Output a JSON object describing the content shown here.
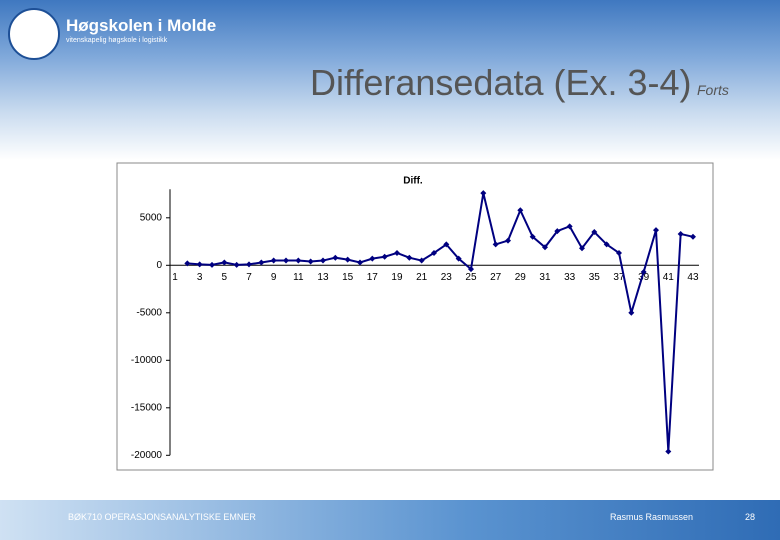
{
  "header": {
    "logo_name": "Høgskolen i Molde",
    "logo_tagline": "vitenskapelig høgskole i logistikk"
  },
  "slide": {
    "title": "Differansedata (Ex. 3-4)",
    "title_suffix": "Forts"
  },
  "footer": {
    "course": "BØK710 OPERASJONSANALYTISKE EMNER",
    "author": "Rasmus Rasmussen",
    "page": "28"
  },
  "chart_data": {
    "type": "line",
    "title": "Diff.",
    "categories": [
      "1",
      null,
      "3",
      null,
      "5",
      null,
      "7",
      null,
      "9",
      null,
      "11",
      null,
      "13",
      null,
      "15",
      null,
      "17",
      null,
      "19",
      null,
      "21",
      null,
      "23",
      null,
      "25",
      null,
      "27",
      null,
      "29",
      null,
      "31",
      null,
      "33",
      null,
      "35",
      null,
      "37",
      null,
      "39",
      null,
      "41",
      null,
      "43"
    ],
    "series": [
      {
        "name": "Diff.",
        "color": "#000080",
        "values": [
          null,
          200,
          100,
          50,
          300,
          50,
          100,
          300,
          500,
          500,
          500,
          400,
          500,
          800,
          600,
          300,
          700,
          900,
          1300,
          800,
          500,
          1300,
          2200,
          700,
          -400,
          7600,
          2200,
          2600,
          5800,
          3000,
          1900,
          3600,
          4100,
          1800,
          3500,
          2200,
          1300,
          -5000,
          -700,
          3700,
          -19600,
          3300,
          3000
        ]
      }
    ],
    "ylim": [
      -20000,
      8000
    ],
    "yticks": [
      -20000,
      -15000,
      -10000,
      -5000,
      0,
      5000
    ]
  }
}
